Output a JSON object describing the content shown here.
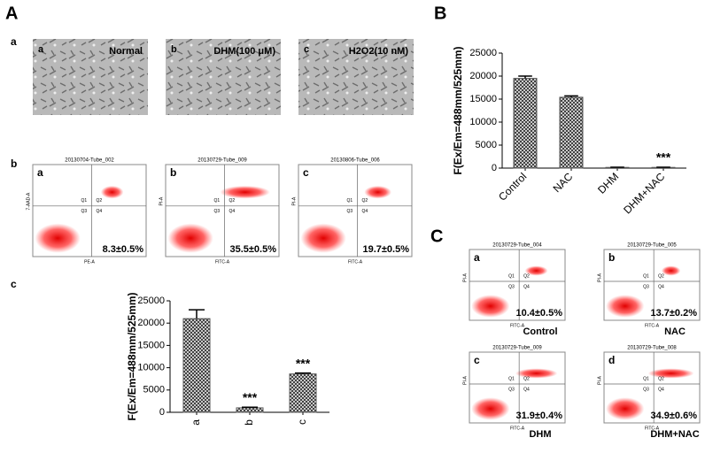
{
  "figure": {
    "panel_labels": [
      "A",
      "B",
      "C"
    ],
    "micrographs": {
      "row_label": "a",
      "images": [
        {
          "letter": "a",
          "label": "Normal"
        },
        {
          "letter": "b",
          "label": "DHM(100 μM)"
        },
        {
          "letter": "c",
          "label": "H2O2(10 nM)"
        }
      ]
    },
    "quadrants": [
      "Q1",
      "Q2",
      "Q3",
      "Q4"
    ],
    "flow_A": {
      "row_label": "b",
      "plots": [
        {
          "letter": "a",
          "tube": "20130704-Tube_002",
          "x_label": "PE-A",
          "y_label": "7-AAD-A",
          "percent": "8.3±0.5%"
        },
        {
          "letter": "b",
          "tube": "20130729-Tube_009",
          "x_label": "FITC-A",
          "y_label": "PI-A",
          "percent": "35.5±0.5%"
        },
        {
          "letter": "c",
          "tube": "20130806-Tube_006",
          "x_label": "FITC-A",
          "y_label": "PI-A",
          "percent": "19.7±0.5%"
        }
      ]
    },
    "bar_row_label": "c",
    "flow_C": {
      "plots": [
        {
          "letter": "a",
          "tube": "20130729-Tube_004",
          "x_label": "FITC-A",
          "y_label": "PI-A",
          "percent": "10.4±0.5%",
          "condition": "Control"
        },
        {
          "letter": "b",
          "tube": "20130729-Tube_005",
          "x_label": "FITC-A",
          "y_label": "PI-A",
          "percent": "13.7±0.2%",
          "condition": "NAC"
        },
        {
          "letter": "c",
          "tube": "20130729-Tube_009",
          "x_label": "FITC-A",
          "y_label": "PI-A",
          "percent": "31.9±0.4%",
          "condition": "DHM"
        },
        {
          "letter": "d",
          "tube": "20130729-Tube_008",
          "x_label": "FITC-A",
          "y_label": "PI-A",
          "percent": "34.9±0.6%",
          "condition": "DHM+NAC"
        }
      ]
    }
  },
  "chart_data": [
    {
      "type": "bar",
      "y_label": "F(Ex/Em=488mm/525mm)",
      "categories": [
        "Control",
        "NAC",
        "DHM",
        "DHM+NAC"
      ],
      "values": [
        19500,
        15400,
        150,
        150
      ],
      "errors": [
        500,
        300,
        50,
        50
      ],
      "annotations": [
        null,
        null,
        null,
        "***"
      ],
      "ylim": [
        0,
        25000
      ],
      "yticks": [
        0,
        5000,
        10000,
        15000,
        20000,
        25000
      ],
      "color": "#555555"
    },
    {
      "type": "bar",
      "y_label": "F(Ex/Em=488mm/525mm)",
      "categories": [
        "a",
        "b",
        "c"
      ],
      "values": [
        21000,
        1000,
        8600
      ],
      "errors": [
        2000,
        150,
        200
      ],
      "annotations": [
        null,
        "***",
        "***"
      ],
      "ylim": [
        0,
        25000
      ],
      "yticks": [
        0,
        5000,
        10000,
        15000,
        20000,
        25000
      ],
      "color": "#555555"
    }
  ]
}
